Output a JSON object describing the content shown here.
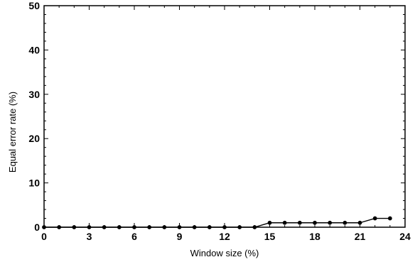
{
  "chart_data": {
    "type": "line",
    "title": "",
    "xlabel": "Window size (%)",
    "ylabel": "Equal error rate (%)",
    "xlim": [
      0,
      24
    ],
    "ylim": [
      0,
      50
    ],
    "xticks": [
      0,
      3,
      6,
      9,
      12,
      15,
      18,
      21,
      24
    ],
    "yticks": [
      0,
      10,
      20,
      30,
      40,
      50
    ],
    "grid": false,
    "legend": "none",
    "series": [
      {
        "x": [
          0,
          1,
          2,
          3,
          4,
          5,
          6,
          7,
          8,
          9,
          10,
          11,
          12,
          13,
          14,
          15,
          16,
          17,
          18,
          19,
          20,
          21,
          22,
          23
        ],
        "y": [
          0,
          0,
          0,
          0,
          0,
          0,
          0,
          0,
          0,
          0,
          0,
          0,
          0,
          0,
          0,
          1,
          1,
          1,
          1,
          1,
          1,
          1,
          2,
          2
        ]
      }
    ],
    "colors": {
      "line": "#000000",
      "marker": "#000000"
    }
  }
}
